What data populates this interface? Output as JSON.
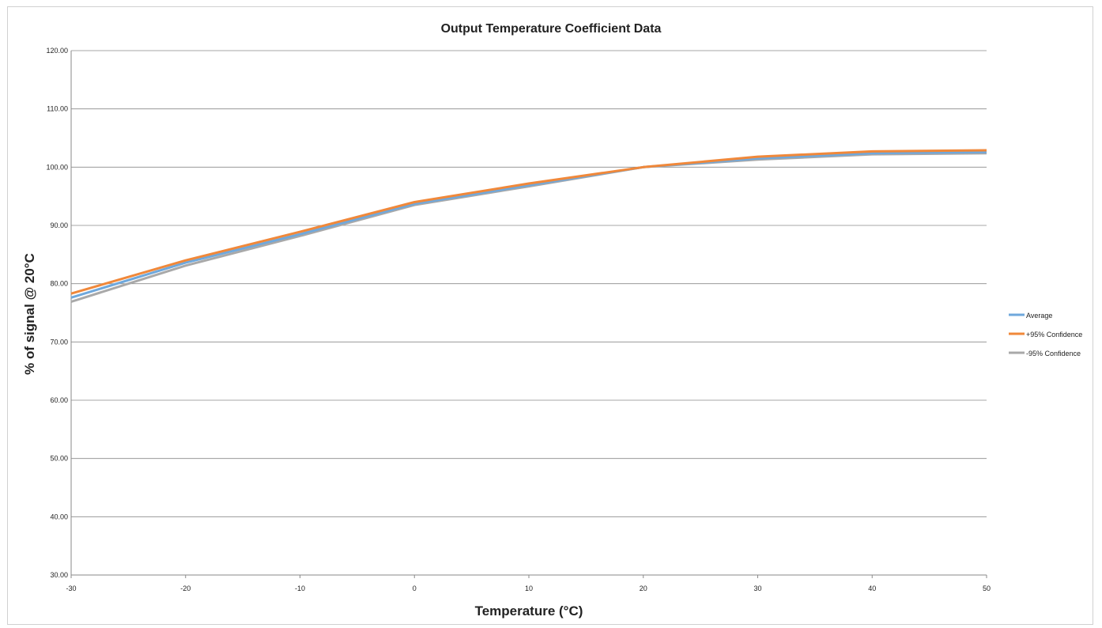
{
  "chart_data": {
    "type": "line",
    "title": "Output Temperature Coefficient Data",
    "xlabel": "Temperature  (°C)",
    "ylabel": "% of signal @ 20°C",
    "x": [
      -30,
      -20,
      -10,
      0,
      10,
      20,
      30,
      40,
      50
    ],
    "xlim": [
      -30,
      50
    ],
    "ylim": [
      30,
      120
    ],
    "x_ticks": [
      "-30",
      "-20",
      "-10",
      "0",
      "10",
      "20",
      "30",
      "40",
      "50"
    ],
    "y_ticks": [
      "30.00",
      "40.00",
      "50.00",
      "60.00",
      "70.00",
      "80.00",
      "90.00",
      "100.00",
      "110.00",
      "120.00"
    ],
    "grid": "horizontal",
    "legend_position": "right",
    "series": [
      {
        "name": "Average",
        "color": "#6fa8dc",
        "values": [
          77.6,
          83.6,
          88.5,
          93.7,
          96.9,
          100.0,
          101.5,
          102.4,
          102.6
        ]
      },
      {
        "name": "+95% Confidence",
        "color": "#f0883a",
        "values": [
          78.3,
          84.0,
          88.9,
          94.0,
          97.2,
          100.0,
          101.8,
          102.7,
          102.9
        ]
      },
      {
        "name": "-95% Confidence",
        "color": "#a9a9a9",
        "values": [
          76.9,
          83.1,
          88.2,
          93.5,
          96.7,
          100.0,
          101.3,
          102.2,
          102.4
        ]
      }
    ]
  }
}
